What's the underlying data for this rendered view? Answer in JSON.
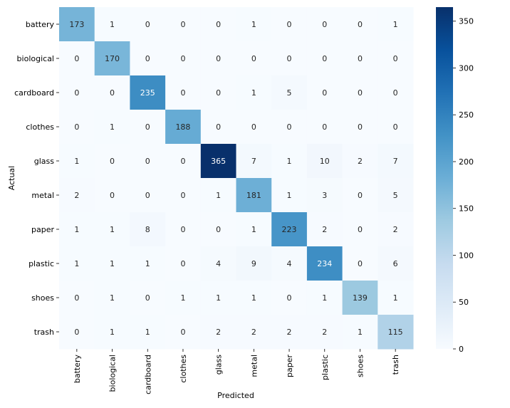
{
  "chart_data": {
    "type": "heatmap",
    "title": "",
    "xlabel": "Predicted",
    "ylabel": "Actual",
    "x_categories": [
      "battery",
      "biological",
      "cardboard",
      "clothes",
      "glass",
      "metal",
      "paper",
      "plastic",
      "shoes",
      "trash"
    ],
    "y_categories": [
      "battery",
      "biological",
      "cardboard",
      "clothes",
      "glass",
      "metal",
      "paper",
      "plastic",
      "shoes",
      "trash"
    ],
    "values": [
      [
        173,
        1,
        0,
        0,
        0,
        1,
        0,
        0,
        0,
        1
      ],
      [
        0,
        170,
        0,
        0,
        0,
        0,
        0,
        0,
        0,
        0
      ],
      [
        0,
        0,
        235,
        0,
        0,
        1,
        5,
        0,
        0,
        0
      ],
      [
        0,
        1,
        0,
        188,
        0,
        0,
        0,
        0,
        0,
        0
      ],
      [
        1,
        0,
        0,
        0,
        365,
        7,
        1,
        10,
        2,
        7
      ],
      [
        2,
        0,
        0,
        0,
        1,
        181,
        1,
        3,
        0,
        5
      ],
      [
        1,
        1,
        8,
        0,
        0,
        1,
        223,
        2,
        0,
        2
      ],
      [
        1,
        1,
        1,
        0,
        4,
        9,
        4,
        234,
        0,
        6
      ],
      [
        0,
        1,
        0,
        1,
        1,
        1,
        0,
        1,
        139,
        1
      ],
      [
        0,
        1,
        1,
        0,
        2,
        2,
        2,
        2,
        1,
        115
      ]
    ],
    "colorbar": {
      "colormap": "Blues",
      "vmin": 0,
      "vmax": 365,
      "ticks": [
        0,
        50,
        100,
        150,
        200,
        250,
        300,
        350
      ]
    }
  }
}
